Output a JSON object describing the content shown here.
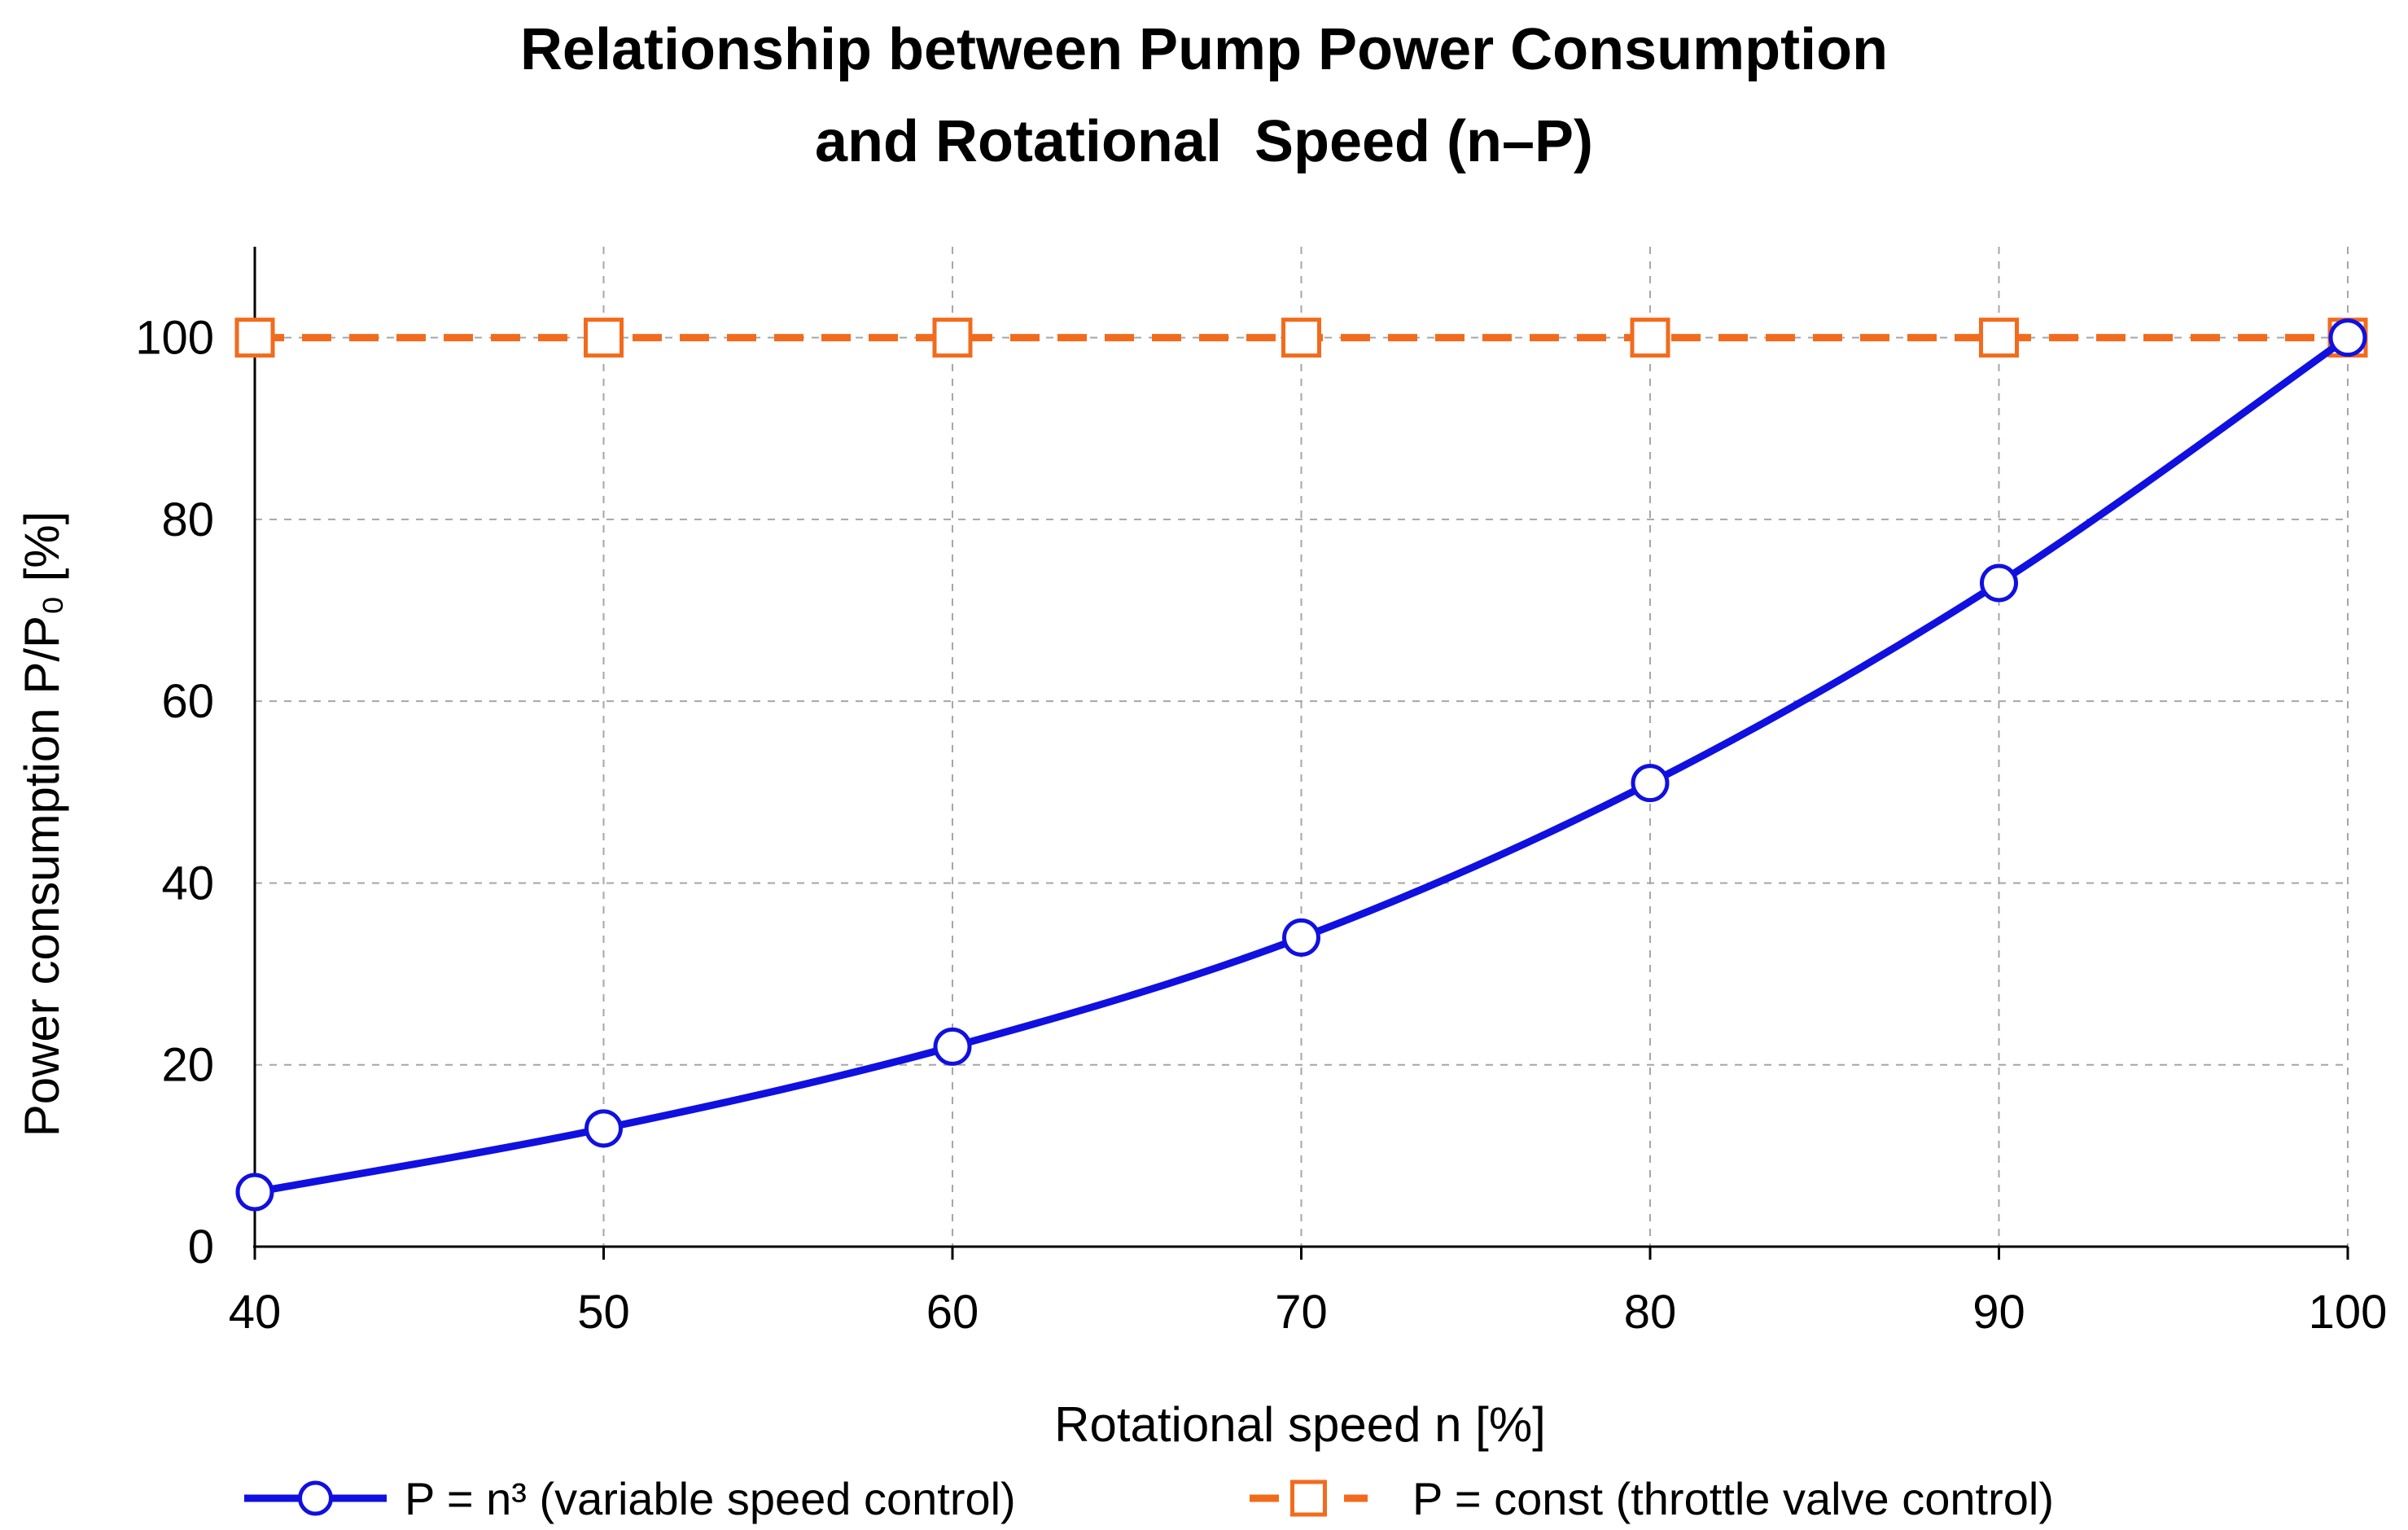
{
  "chart_data": {
    "type": "line",
    "title": [
      "Relationship between Pump Power Consumption",
      "and Rotational  Speed (n–P)"
    ],
    "xlabel": "Rotational speed n [%]",
    "ylabel": "Power consumption P/P₀ [%]",
    "x": [
      40,
      50,
      60,
      70,
      80,
      90,
      100
    ],
    "xlim": [
      40,
      100
    ],
    "ylim": [
      0,
      110
    ],
    "xticks": [
      "40",
      "50",
      "60",
      "70",
      "80",
      "90",
      "100"
    ],
    "yticks": [
      "0",
      "20",
      "40",
      "60",
      "80",
      "100"
    ],
    "grid": true,
    "legend_position": "bottom",
    "series": [
      {
        "name": "P = n³ (variable speed control)",
        "values": [
          6,
          13,
          22,
          34,
          51,
          73,
          100
        ],
        "color": "#1010e0",
        "marker": "circle",
        "line_style": "solid"
      },
      {
        "name": "P = const (throttle valve control)",
        "values": [
          100,
          100,
          100,
          100,
          100,
          100,
          100
        ],
        "color": "#f26b1d",
        "marker": "square",
        "line_style": "dashed"
      }
    ]
  }
}
